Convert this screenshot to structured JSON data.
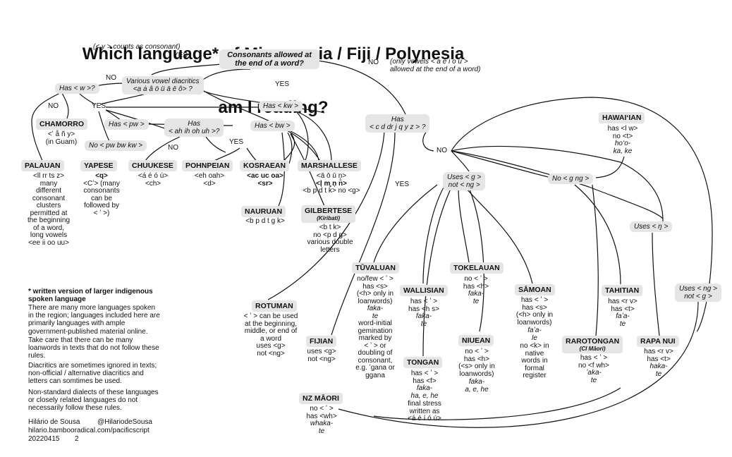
{
  "title": {
    "line1": "Which language* of Micronesia / Fiji / Polynesia",
    "line2": "am I reading?"
  },
  "questions": {
    "consonants": "Consonants allowed at\nthe end of a word?",
    "y_note": "(< y > counts as consonant)",
    "only_vowels_note": "(only vowels < a e i o u >\nallowed at the end of a word)",
    "vowel_diacritics": "Various vowel diacritics\n<ạ ȧ â ö ü ä ē ô> ?",
    "has_w": "Has < w >?",
    "has_kw": "Has < kw >",
    "has_pw": "Has < pw >",
    "has_ah": "Has\n< ah ih oh uh >?",
    "has_bw": "Has < bw >",
    "no_pw": "No < pw bw kw >",
    "has_cd": "Has\n< c d dr j q y z > ?",
    "uses_g": "Uses < g >\nnot < ng >",
    "no_gng": "No < g ng >",
    "uses_eng": "Uses < ŋ >",
    "uses_ng": "Uses < ng >\nnot < g >"
  },
  "answers": {
    "yes_consonants": "YES",
    "no_consonants": "NO",
    "no_diacritics": "NO",
    "yes_diacritics": "YES",
    "no_w": "NO",
    "yes_w": "YES",
    "no_ah": "NO",
    "yes_ah": "YES",
    "no_cd": "NO",
    "yes_cd": "YES"
  },
  "languages": {
    "chamorro": {
      "name": "CHAMORRO",
      "desc": "<ʼ å ñ y>\n(in Guam)"
    },
    "palauan": {
      "name": "PALAUAN",
      "desc": "<ll rr ts z>\nmany\ndifferent\nconsonant\nclusters\npermitted at\nthe beginning\nof a word,\nlong vowels\n<ee ii oo uu>"
    },
    "yapese": {
      "name": "YAPESE",
      "desc1": "<q>",
      "desc2": "<Cʼ> (many\nconsonants\ncan be\nfollowed by\n< ʼ >)"
    },
    "chuukese": {
      "name": "CHUUKESE",
      "desc": "<á é ó ú>\n<ch>"
    },
    "pohnpeian": {
      "name": "POHNPEIAN",
      "desc": "<eh oah>\n<d>"
    },
    "kosraean": {
      "name": "KOSRAEAN",
      "desc1": "<ac uc oa>",
      "desc2": "<sr>"
    },
    "marshallese": {
      "name": "MARSHALLESE",
      "desc1": "<ā ō ū ņ>",
      "desc2": "<ļ m̧ ņ n̄>",
      "desc3": "<b p d t k> no <g>"
    },
    "nauruan": {
      "name": "NAURUAN",
      "desc": "<b p d t g k>"
    },
    "gilbertese": {
      "name": "GILBERTESE",
      "sub": "(Kiribati)",
      "desc": "<b t k>\nno <p d g>\nvarious double\nletters"
    },
    "rotuman": {
      "name": "ROTUMAN",
      "desc": "< ʼ > can be used\nat the beginning,\nmiddle, or end of\na word\nuses <g>\nnot <ng>"
    },
    "fijian": {
      "name": "FIJIAN",
      "desc": "uses <g>\nnot <ng>"
    },
    "tuvaluan": {
      "name": "TŪVALUAN",
      "desc": "no/few < ʼ >\nhas <s>\n(<h> only in\nloanwords)",
      "example": "faka-\nte",
      "desc2": "word-initial\ngemination\nmarked by\n< ʼ > or\ndoubling of\nconsonant,\ne.g. ʼgana or\nggana"
    },
    "wallisian": {
      "name": "WALLISIAN",
      "desc": "has < ʼ >\nhas <h s>",
      "example": "faka-\nte"
    },
    "tokelauan": {
      "name": "TOKELAUAN",
      "desc": "no < ʼ >\nhas <h>",
      "example": "faka-\nte"
    },
    "samoan": {
      "name": "SĀMOAN",
      "desc": "has < ʼ >\nhas <s>\n(<h> only in\nloanwords)",
      "example": "faʼa-\nle",
      "desc2": "no <k> in\nnative\nwords in\nformal\nregister"
    },
    "niuean": {
      "name": "NIUEAN",
      "desc": "no < ʼ >\nhas <h>\n(<s> only in\nloanwords)",
      "example": "faka-\na, e, he"
    },
    "tongan": {
      "name": "TONGAN",
      "desc": "has < ʼ >\nhas <f>",
      "example": "faka-\nha, e, he",
      "desc2": "final stress\nwritten as\n<á é í ó ú>"
    },
    "nz_maori": {
      "name": "NZ MĀORI",
      "desc1": "no < ʼ >",
      "desc2": "has <wh>",
      "example": "whaka-\nte"
    },
    "hawaiian": {
      "name": "HAWAIʻIAN",
      "desc": "has <l w>\nno <t>",
      "example": "hoʻo-\nka, ke"
    },
    "tahitian": {
      "name": "TAHITIAN",
      "desc": "has <r v>\nhas <t>",
      "example": "faʼa-\nte"
    },
    "rarotongan": {
      "name": "RAROTONGAN",
      "sub": "(CI Māori)",
      "desc": "has < ʼ >\nno <f wh>",
      "example": "ʼaka-\nte"
    },
    "rapa_nui": {
      "name": "RAPA NUI",
      "desc": "has <r v>\nhas <t>",
      "example": "haka-\nte"
    }
  },
  "notes": {
    "heading": "* written version of larger indigenous\nspoken language",
    "p1": "There are many more languages spoken\nin the region; languages included here are\nprimarily languages with ample\ngovernment-published material online.",
    "p2": "Take care that there can be many\nloanwords in texts that do not follow these\nrules.",
    "p3": "Diacritics are sometimes ignored in texts;\nnon-official / alternative diacritics and\nletters can somtimes be used.",
    "p4": "Non-standard dialects of these languages\nor closely related languages do not\nnecessarily follow these rules."
  },
  "credits": {
    "author": "Hilário de Sousa",
    "handle": "@HilariodeSousa",
    "url": "hilario.bambooradical.com/pacificscript",
    "date": "20220415",
    "version": "2"
  }
}
